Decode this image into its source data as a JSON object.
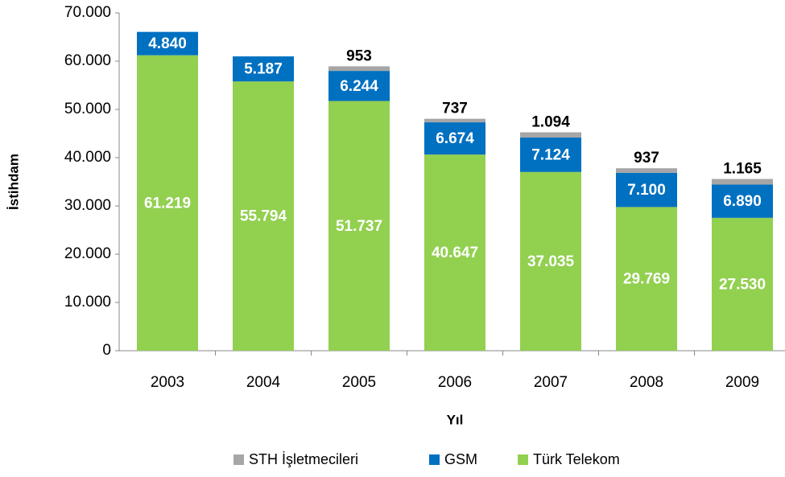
{
  "chart_data": {
    "type": "stacked_bar",
    "x_label": "Yıl",
    "y_label": "İstihdam",
    "categories": [
      "2003",
      "2004",
      "2005",
      "2006",
      "2007",
      "2008",
      "2009"
    ],
    "series": [
      {
        "name": "Türk Telekom",
        "color": "#92d050",
        "values": [
          61219,
          55794,
          51737,
          40647,
          37035,
          29769,
          27530
        ],
        "value_labels": [
          "61.219",
          "55.794",
          "51.737",
          "40.647",
          "37.035",
          "29.769",
          "27.530"
        ]
      },
      {
        "name": "GSM",
        "color": "#0070c0",
        "values": [
          4840,
          5187,
          6244,
          6674,
          7124,
          7100,
          6890
        ],
        "value_labels": [
          "4.840",
          "5.187",
          "6.244",
          "6.674",
          "7.124",
          "7.100",
          "6.890"
        ]
      },
      {
        "name": "STH İşletmecileri",
        "color": "#a6a6a6",
        "values": [
          null,
          null,
          953,
          737,
          1094,
          937,
          1165
        ],
        "value_labels": [
          null,
          null,
          "953",
          "737",
          "1.094",
          "937",
          "1.165"
        ]
      }
    ],
    "ylim": [
      0,
      70000
    ],
    "yticks": [
      0,
      {
        "value": 10000,
        "label": "10.000"
      },
      {
        "value": 20000,
        "label": "20.000"
      },
      {
        "value": 30000,
        "label": "30.000"
      },
      {
        "value": 40000,
        "label": "40.000"
      },
      {
        "value": 50000,
        "label": "50.000"
      },
      {
        "value": 60000,
        "label": "60.000"
      },
      {
        "value": 70000,
        "label": "70.000"
      }
    ],
    "legend": "bottom"
  }
}
